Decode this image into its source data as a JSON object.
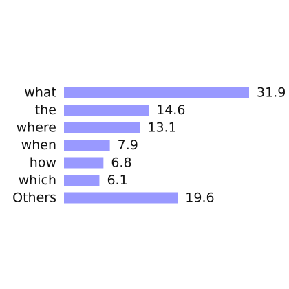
{
  "chart_data": {
    "type": "bar",
    "orientation": "horizontal",
    "categories": [
      "what",
      "the",
      "where",
      "when",
      "how",
      "which",
      "Others"
    ],
    "values": [
      31.9,
      14.6,
      13.1,
      7.9,
      6.8,
      6.1,
      19.6
    ],
    "value_labels": [
      "31.9",
      "14.6",
      "13.1",
      "7.9",
      "6.8",
      "6.1",
      "19.6"
    ],
    "xlim": [
      0,
      31.9
    ],
    "grid": false,
    "bar_color": "#9999ff"
  }
}
